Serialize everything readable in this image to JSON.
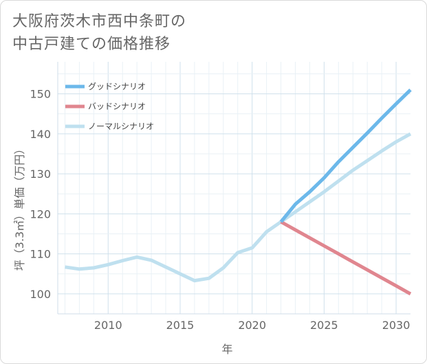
{
  "title_lines": [
    "大阪府茨木市西中条町の",
    "中古戸建ての価格推移"
  ],
  "chart_data": {
    "type": "line",
    "xlabel": "年",
    "ylabel": "坪（3.3㎡）単価（万円）",
    "xlim": [
      2006.5,
      2031
    ],
    "ylim": [
      95,
      158
    ],
    "x_ticks": [
      2010,
      2015,
      2020,
      2025,
      2030
    ],
    "y_ticks": [
      100,
      110,
      120,
      130,
      140,
      150
    ],
    "grid": true,
    "legend_placement": "top-left",
    "series": [
      {
        "name": "グッドシナリオ",
        "color": "#6cb8ea",
        "x": [
          2022,
          2023,
          2024,
          2025,
          2026,
          2027,
          2028,
          2029,
          2030,
          2031
        ],
        "y": [
          118,
          122.4,
          125.5,
          129,
          133,
          136.6,
          140.2,
          143.9,
          147.5,
          151
        ]
      },
      {
        "name": "バッドシナリオ",
        "color": "#e0868f",
        "x": [
          2022,
          2023,
          2024,
          2025,
          2026,
          2027,
          2028,
          2029,
          2030,
          2031
        ],
        "y": [
          118,
          116,
          114,
          112,
          110,
          108,
          106,
          104,
          102,
          100
        ]
      },
      {
        "name": "ノーマルシナリオ",
        "color": "#bfe0ef",
        "x": [
          2007,
          2008,
          2009,
          2010,
          2011,
          2012,
          2013,
          2014,
          2015,
          2016,
          2017,
          2018,
          2019,
          2020,
          2021,
          2022,
          2023,
          2024,
          2025,
          2026,
          2027,
          2028,
          2029,
          2030,
          2031
        ],
        "y": [
          106.7,
          106.2,
          106.5,
          107.3,
          108.3,
          109.2,
          108.4,
          106.7,
          105,
          103.3,
          103.9,
          106.5,
          110.3,
          111.5,
          115.5,
          118,
          120.5,
          123,
          125.5,
          128.2,
          130.9,
          133.3,
          135.7,
          138,
          140
        ]
      }
    ]
  }
}
